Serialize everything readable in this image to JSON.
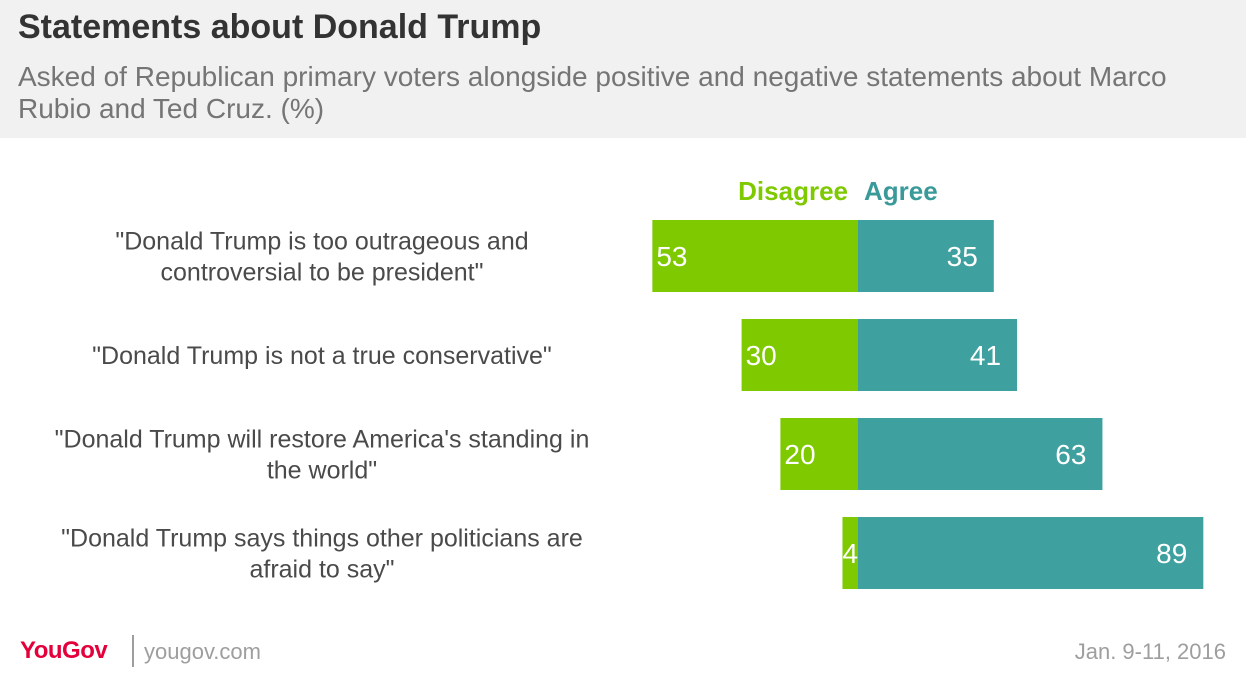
{
  "header": {
    "title": "Statements about Donald Trump",
    "subtitle": "Asked of Republican primary voters alongside positive and negative statements about Marco Rubio and Ted Cruz. (%)"
  },
  "footer": {
    "brand": "YouGov",
    "site": "yougov.com",
    "date": "Jan. 9-11, 2016"
  },
  "colors": {
    "disagree": "#7ec900",
    "agree": "#3fa0a0",
    "disagree_label": "#7ec900",
    "agree_label": "#3a9a9a",
    "brand": "#e4003b"
  },
  "chart_data": {
    "type": "bar",
    "orientation": "horizontal-diverging",
    "categories": [
      "\"Donald Trump is too outrageous and controversial to be president\"",
      "\"Donald Trump is not a true conservative\"",
      "\"Donald Trump will restore America's standing in the world\"",
      "\"Donald Trump says things other politicians are afraid to say\""
    ],
    "category_lines": [
      [
        "\"Donald Trump is too outrageous and",
        "controversial to be president\""
      ],
      [
        "\"Donald Trump is not a true conservative\""
      ],
      [
        "\"Donald Trump will restore America's standing in",
        "the world\""
      ],
      [
        "\"Donald Trump says things other politicians are",
        "afraid to say\""
      ]
    ],
    "series": [
      {
        "name": "Disagree",
        "values": [
          53,
          30,
          20,
          4
        ]
      },
      {
        "name": "Agree",
        "values": [
          35,
          41,
          63,
          89
        ]
      }
    ],
    "legend_position": "top",
    "grid": false
  }
}
